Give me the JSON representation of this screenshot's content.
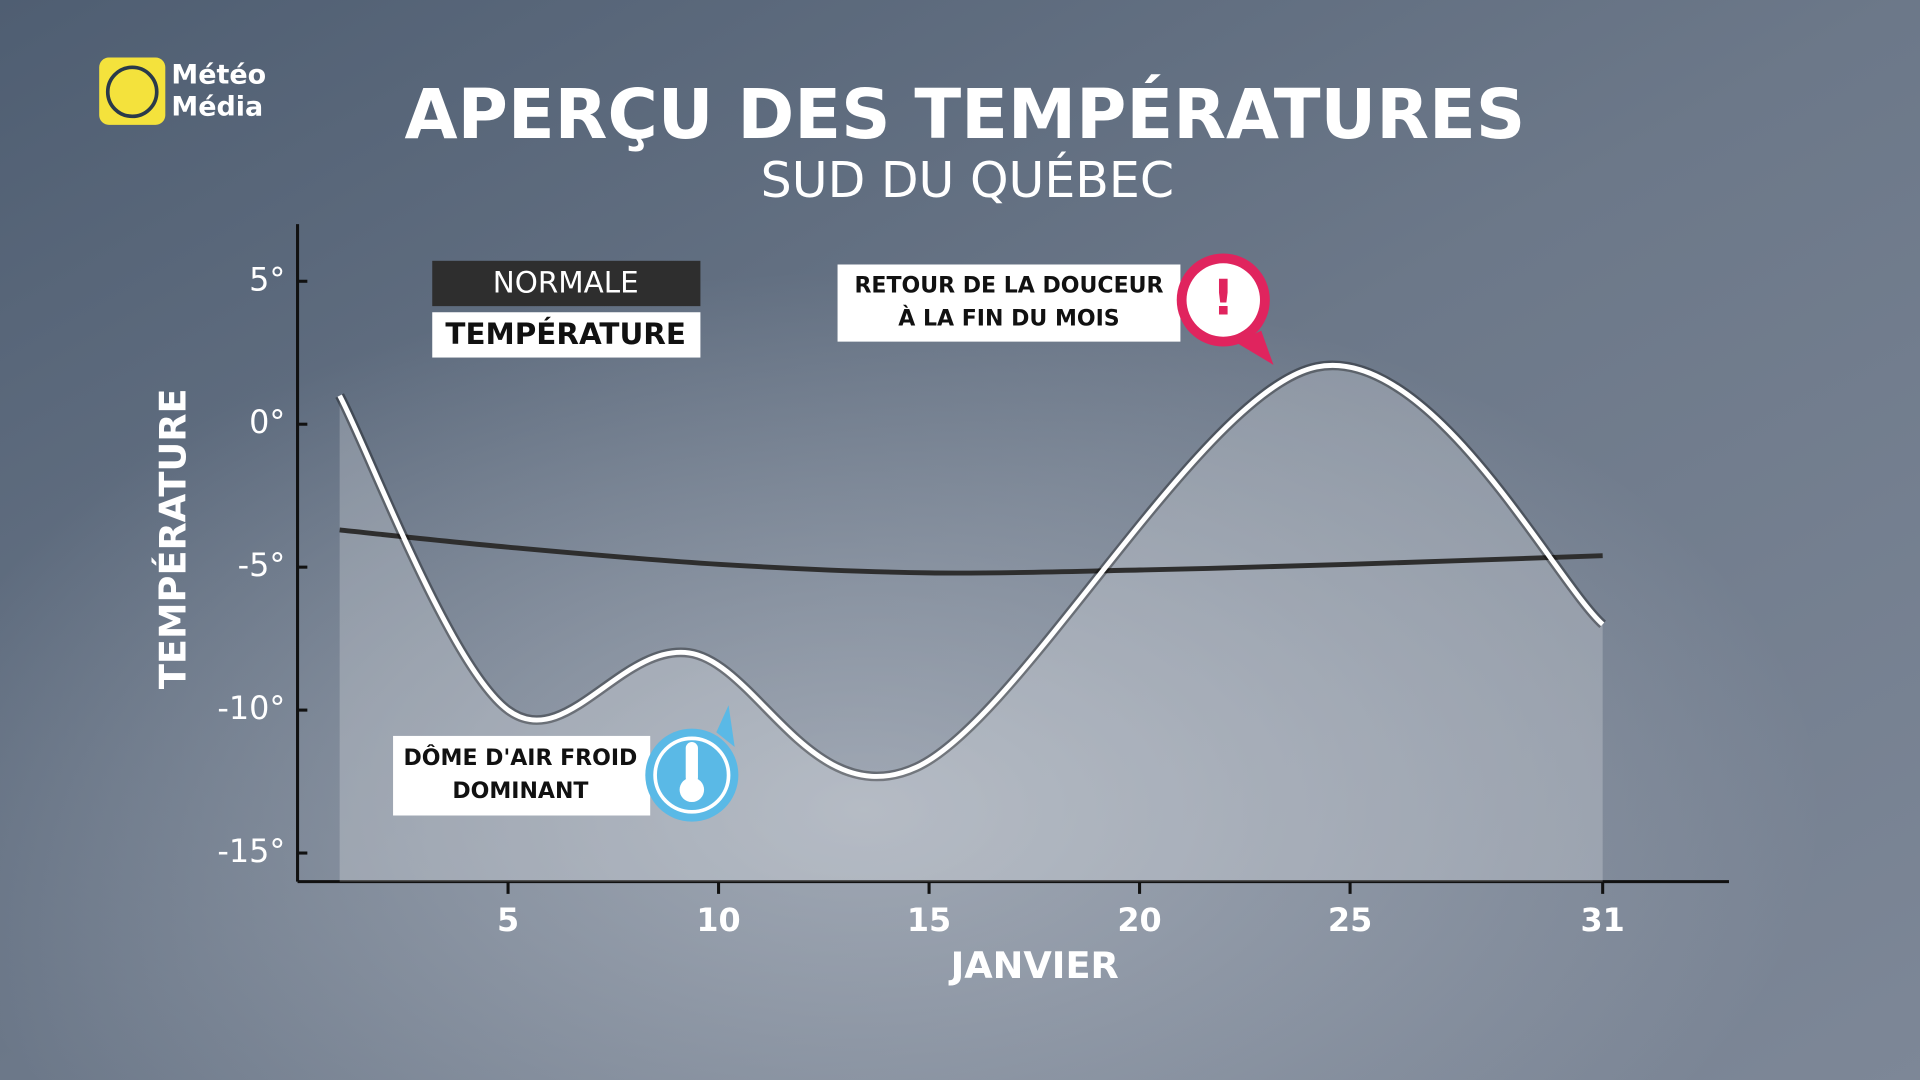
{
  "logo": [
    "Météo",
    "Média"
  ],
  "chart_data": {
    "type": "line",
    "title": "APERÇU DES TEMPÉRATURES",
    "subtitle": "SUD DU QUÉBEC",
    "x_label": "JANVIER",
    "y_label": "TEMPÉRATURE",
    "xlim": [
      0,
      34
    ],
    "xticks": [
      5,
      10,
      15,
      20,
      25,
      31
    ],
    "ylim": [
      -16,
      7
    ],
    "yticks": [
      {
        "value": 5,
        "label": "5°"
      },
      {
        "value": 0,
        "label": "0°"
      },
      {
        "value": -5,
        "label": "-5°"
      },
      {
        "value": -10,
        "label": "-10°"
      },
      {
        "value": -15,
        "label": "-15°"
      }
    ],
    "series": [
      {
        "name": "NORMALE",
        "color": "#2e2e2e",
        "x": [
          1,
          5,
          10,
          15,
          20,
          25,
          31
        ],
        "values": [
          -3.7,
          -4.3,
          -4.9,
          -5.2,
          -5.1,
          -4.9,
          -4.6
        ]
      },
      {
        "name": "TEMPÉRATURE",
        "color": "#ffffff",
        "x": [
          1,
          5,
          9.3,
          14.7,
          24.2,
          31
        ],
        "values": [
          1,
          -10,
          -8,
          -12,
          2,
          -7
        ]
      }
    ],
    "annotations": [
      {
        "lines": [
          "RETOUR DE LA DOUCEUR",
          "À LA FIN DU MOIS"
        ]
      },
      {
        "lines": [
          "DÔME D'AIR FROID",
          "DOMINANT"
        ]
      }
    ]
  }
}
